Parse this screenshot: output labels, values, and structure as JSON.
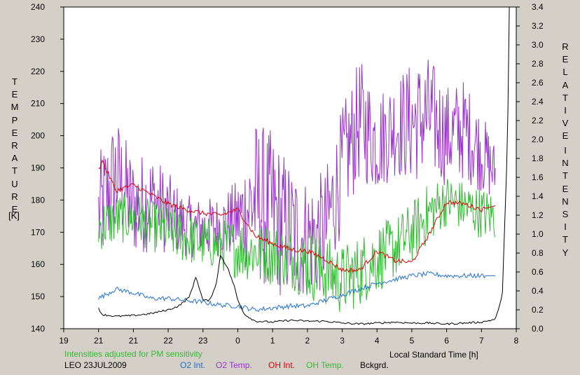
{
  "chart_data": {
    "type": "line",
    "title": "",
    "xlabel": "Local Standard Time [h]",
    "x_ticks": [
      "19",
      "21",
      "21",
      "22",
      "23",
      "0",
      "1",
      "2",
      "3",
      "4",
      "5",
      "6",
      "7",
      "8"
    ],
    "x_tick_note": "first tick printed as 19 at hour 19; then 21..7 and 8",
    "x_tick_labels": [
      "19",
      "21",
      "21",
      "22",
      "23",
      "0",
      "1",
      "2",
      "3",
      "4",
      "5",
      "6",
      "7",
      "8"
    ],
    "xlim_hours": [
      19,
      32
    ],
    "y_left": {
      "label_letters": [
        "T",
        "E",
        "M",
        "P",
        "E",
        "R",
        "A",
        "T",
        "U",
        "R",
        "E"
      ],
      "unit": "[K]",
      "ticks": [
        "140",
        "150",
        "160",
        "170",
        "180",
        "190",
        "200",
        "210",
        "220",
        "230",
        "240"
      ],
      "range": [
        140,
        240
      ]
    },
    "y_right": {
      "label_word1": [
        "R",
        "E",
        "L",
        "A",
        "T",
        "I",
        "V",
        "E"
      ],
      "label_word2": [
        "I",
        "N",
        "T",
        "E",
        "N",
        "S",
        "I",
        "T",
        "Y"
      ],
      "ticks": [
        "0.0",
        "0.2",
        "0.4",
        "0.6",
        "0.8",
        "1.0",
        "1.2",
        "1.4",
        "1.6",
        "1.8",
        "2.0",
        "2.2",
        "2.4",
        "2.6",
        "2.8",
        "3.0",
        "3.2",
        "3.4"
      ],
      "range": [
        0,
        3.4
      ]
    },
    "grid": false,
    "note": "Intensities adjusted for PM sensitivity",
    "station": "LEO 23JUL2009",
    "legend": [
      {
        "label": "O2 Int.",
        "color": "#1f6fd0"
      },
      {
        "label": "O2 Temp.",
        "color": "#9933cc"
      },
      {
        "label": "OH Int.",
        "color": "#e00000"
      },
      {
        "label": "OH Temp.",
        "color": "#33bb33"
      },
      {
        "label": "Bckgrd.",
        "color": "#000000"
      }
    ],
    "series": [
      {
        "name": "O2 Temp.",
        "axis": "left",
        "color": "#9933cc",
        "x": [
          20.0,
          20.5,
          21.0,
          21.5,
          22.0,
          22.5,
          23.0,
          23.5,
          24.0,
          24.5,
          25.0,
          25.5,
          26.0,
          26.5,
          27.0,
          27.5,
          28.0,
          28.5,
          29.0,
          29.5,
          30.0,
          30.5,
          31.0,
          31.4
        ],
        "y": [
          175,
          188,
          178,
          180,
          176,
          172,
          171,
          172,
          174,
          180,
          176,
          170,
          168,
          170,
          190,
          205,
          198,
          203,
          204,
          206,
          200,
          202,
          195,
          188
        ],
        "spread": [
          12,
          12,
          10,
          10,
          8,
          6,
          6,
          6,
          8,
          16,
          16,
          14,
          12,
          12,
          12,
          12,
          10,
          10,
          12,
          12,
          10,
          10,
          8,
          6
        ]
      },
      {
        "name": "OH Temp.",
        "axis": "left",
        "color": "#33bb33",
        "x": [
          20.0,
          20.5,
          21.0,
          21.5,
          22.0,
          22.5,
          23.0,
          23.5,
          24.0,
          24.5,
          25.0,
          25.5,
          26.0,
          26.5,
          27.0,
          27.5,
          28.0,
          28.5,
          29.0,
          29.5,
          30.0,
          30.5,
          31.0,
          31.4
        ],
        "y": [
          172,
          174,
          175,
          172,
          170,
          168,
          167,
          166,
          165,
          164,
          163,
          162,
          160,
          158,
          155,
          158,
          162,
          165,
          170,
          176,
          180,
          178,
          176,
          175
        ],
        "spread": [
          5,
          5,
          5,
          5,
          5,
          5,
          5,
          5,
          6,
          6,
          6,
          6,
          7,
          7,
          7,
          7,
          7,
          6,
          6,
          6,
          5,
          5,
          5,
          5
        ]
      },
      {
        "name": "OH Int.",
        "axis": "right",
        "color": "#e00000",
        "x": [
          20.0,
          20.1,
          20.5,
          21.0,
          21.5,
          22.0,
          22.5,
          23.0,
          23.5,
          24.0,
          24.5,
          25.0,
          25.5,
          26.0,
          26.5,
          27.0,
          27.5,
          28.0,
          28.5,
          29.0,
          29.5,
          30.0,
          30.5,
          31.0,
          31.4
        ],
        "y": [
          1.68,
          1.78,
          1.46,
          1.52,
          1.42,
          1.32,
          1.26,
          1.22,
          1.2,
          1.26,
          0.98,
          0.9,
          0.84,
          0.82,
          0.74,
          0.62,
          0.62,
          0.82,
          0.72,
          0.7,
          1.0,
          1.34,
          1.32,
          1.26,
          1.3
        ]
      },
      {
        "name": "O2 Int.",
        "axis": "right",
        "color": "#1f6fd0",
        "x": [
          20.0,
          20.5,
          21.0,
          21.5,
          22.0,
          22.5,
          23.0,
          23.5,
          24.0,
          24.5,
          25.0,
          25.5,
          26.0,
          26.5,
          27.0,
          27.5,
          28.0,
          28.5,
          29.0,
          29.5,
          30.0,
          30.5,
          31.0,
          31.4
        ],
        "y": [
          0.32,
          0.42,
          0.38,
          0.32,
          0.32,
          0.3,
          0.28,
          0.25,
          0.24,
          0.2,
          0.22,
          0.24,
          0.24,
          0.3,
          0.36,
          0.42,
          0.48,
          0.52,
          0.56,
          0.58,
          0.56,
          0.56,
          0.56,
          0.56
        ]
      },
      {
        "name": "Bckgrd.",
        "axis": "right",
        "color": "#000000",
        "x": [
          20.0,
          20.1,
          20.5,
          21.0,
          21.5,
          22.0,
          22.3,
          22.6,
          22.8,
          23.0,
          23.2,
          23.4,
          23.5,
          23.7,
          23.9,
          24.0,
          24.2,
          24.5,
          25.0,
          25.5,
          26.0,
          26.5,
          27.0,
          27.5,
          28.0,
          28.5,
          29.0,
          29.5,
          30.0,
          30.5,
          31.0,
          31.4,
          31.6,
          31.75,
          31.8
        ],
        "y": [
          0.22,
          0.15,
          0.13,
          0.14,
          0.16,
          0.2,
          0.24,
          0.33,
          0.55,
          0.3,
          0.3,
          0.5,
          0.78,
          0.65,
          0.45,
          0.3,
          0.15,
          0.08,
          0.07,
          0.09,
          0.08,
          0.08,
          0.06,
          0.05,
          0.06,
          0.07,
          0.06,
          0.06,
          0.05,
          0.06,
          0.07,
          0.1,
          0.35,
          2.0,
          3.4
        ]
      }
    ]
  }
}
